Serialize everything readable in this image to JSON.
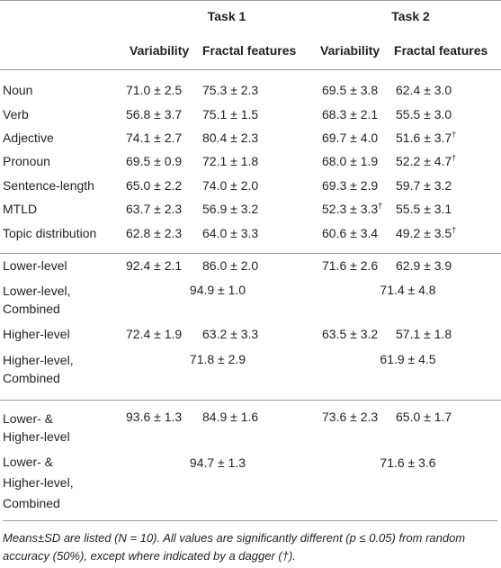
{
  "header": {
    "task1": "Task 1",
    "task2": "Task 2",
    "sub": [
      "Variability",
      "Fractal features",
      "Variability",
      "Fractal features"
    ]
  },
  "group1": [
    {
      "label": "Noun",
      "t1v": "71.0 ± 2.5",
      "t1f": "75.3 ± 2.3",
      "t2v": "69.5 ± 3.8",
      "t2f": "62.4 ± 3.0",
      "dagger": "",
      "dagger_t2v": ""
    },
    {
      "label": "Verb",
      "t1v": "56.8 ± 3.7",
      "t1f": "75.1 ± 1.5",
      "t2v": "68.3 ± 2.1",
      "t2f": "55.5 ± 3.0",
      "dagger": "",
      "dagger_t2v": ""
    },
    {
      "label": "Adjective",
      "t1v": "74.1 ± 2.7",
      "t1f": "80.4 ± 2.3",
      "t2v": "69.7 ± 4.0",
      "t2f": "51.6 ± 3.7",
      "dagger": "†",
      "dagger_t2v": ""
    },
    {
      "label": "Pronoun",
      "t1v": "69.5 ± 0.9",
      "t1f": "72.1 ± 1.8",
      "t2v": "68.0 ± 1.9",
      "t2f": "52.2 ± 4.7",
      "dagger": "†",
      "dagger_t2v": ""
    },
    {
      "label": "Sentence-length",
      "t1v": "65.0 ± 2.2",
      "t1f": "74.0 ± 2.0",
      "t2v": "69.3 ± 2.9",
      "t2f": "59.7 ± 3.2",
      "dagger": "",
      "dagger_t2v": ""
    },
    {
      "label": "MTLD",
      "t1v": "63.7 ± 2.3",
      "t1f": "56.9 ± 3.2",
      "t2v": "52.3 ± 3.3",
      "t2f": "55.5 ± 3.1",
      "dagger": "",
      "dagger_t2v": "†"
    },
    {
      "label": "Topic distribution",
      "t1v": "62.8 ± 2.3",
      "t1f": "64.0 ± 3.3",
      "t2v": "60.6 ± 3.4",
      "t2f": "49.2 ± 3.5",
      "dagger": "†",
      "dagger_t2v": ""
    }
  ],
  "group2": {
    "lower": {
      "label": "Lower-level",
      "t1v": "92.4 ± 2.1",
      "t1f": "86.0 ± 2.0",
      "t2v": "71.6 ± 2.6",
      "t2f": "62.9 ± 3.9"
    },
    "lower_comb": {
      "label_a": "Lower-level,",
      "label_b": "Combined",
      "t1": "94.9 ± 1.0",
      "t2": "71.4 ± 4.8"
    },
    "higher": {
      "label": "Higher-level",
      "t1v": "72.4 ± 1.9",
      "t1f": "63.2 ± 3.3",
      "t2v": "63.5 ± 3.2",
      "t2f": "57.1 ± 1.8"
    },
    "higher_comb": {
      "label_a": "Higher-level,",
      "label_b": "Combined",
      "t1": "71.8 ± 2.9",
      "t2": "61.9 ± 4.5"
    }
  },
  "group3": {
    "both": {
      "label_a": "Lower- &",
      "label_b": "Higher-level",
      "t1v": "93.6 ± 1.3",
      "t1f": "84.9 ± 1.6",
      "t2v": "73.6 ± 2.3",
      "t2f": "65.0 ± 1.7"
    },
    "both_comb": {
      "label_a": "Lower- &",
      "label_b": "Higher-level,",
      "label_c": "Combined",
      "t1": "94.7 ± 1.3",
      "t2": "71.6 ± 3.6"
    }
  },
  "footnote": "Means±SD are listed (N = 10). All values are significantly different (p ≤ 0.05) from random accuracy (50%), except where indicated by a dagger (†)."
}
